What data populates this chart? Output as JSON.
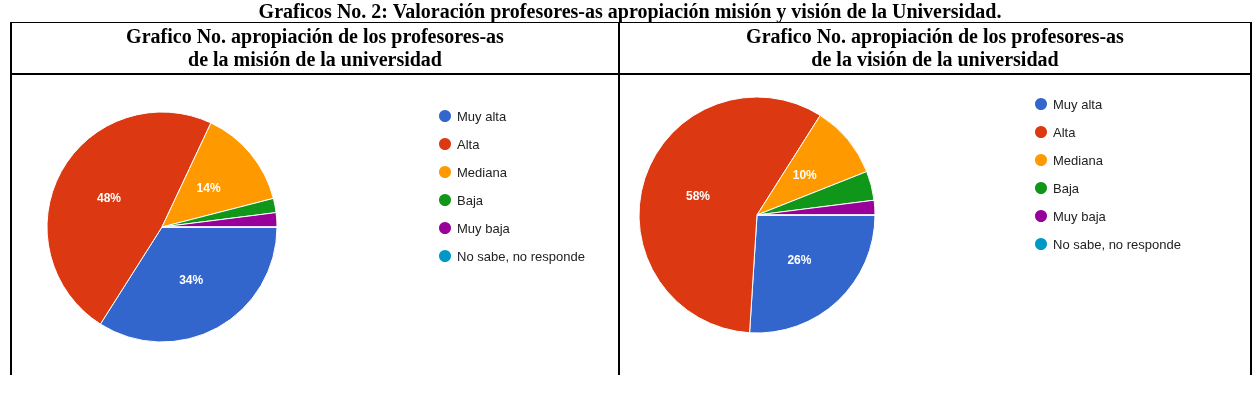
{
  "chart_data": [
    {
      "type": "pie",
      "title": "Grafico No. apropiación de los profesores-as\nde la misión de la universidad",
      "annotations": [
        "Graficos No. 2: Valoración profesores-as apropiación misión y visión de la Universidad."
      ],
      "categories": [
        "Muy alta",
        "Alta",
        "Mediana",
        "Baja",
        "Muy baja",
        "No sabe, no responde"
      ],
      "values": [
        34,
        48,
        14,
        2,
        2,
        0
      ],
      "colors": [
        "#3366cc",
        "#dc3912",
        "#ff9900",
        "#109618",
        "#990099",
        "#0099c6"
      ],
      "value_labels": [
        "34%",
        "48%",
        "14%",
        null,
        null,
        null
      ],
      "legend": "right"
    },
    {
      "type": "pie",
      "title": "Grafico No. apropiación de los profesores-as\nde la visión de la universidad",
      "categories": [
        "Muy alta",
        "Alta",
        "Mediana",
        "Baja",
        "Muy baja",
        "No sabe, no responde"
      ],
      "values": [
        26,
        58,
        10,
        4,
        2,
        0
      ],
      "colors": [
        "#3366cc",
        "#dc3912",
        "#ff9900",
        "#109618",
        "#990099",
        "#0099c6"
      ],
      "value_labels": [
        "26%",
        "58%",
        "10%",
        null,
        null,
        null
      ],
      "legend": "right"
    }
  ]
}
